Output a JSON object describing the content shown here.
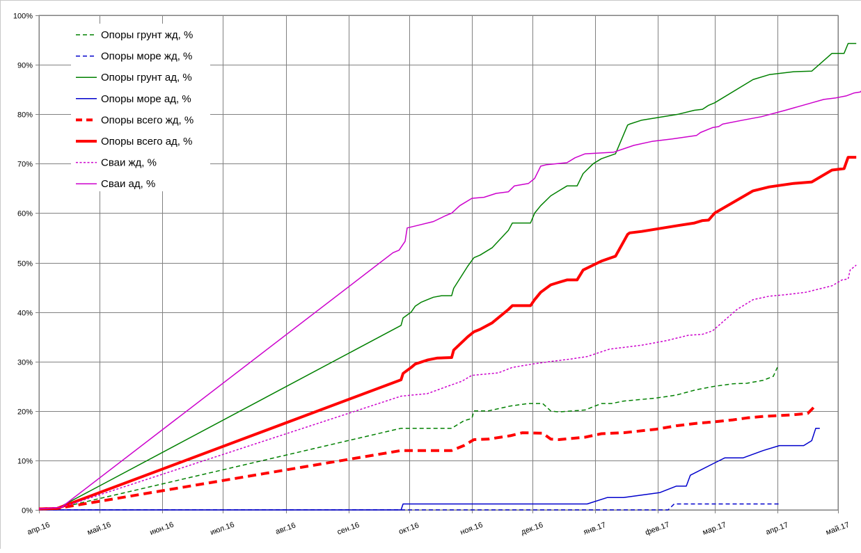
{
  "chart_data": {
    "type": "line",
    "title": "",
    "xlabel": "",
    "ylabel": "",
    "x_range": [
      "2016-04-01",
      "2017-05-01"
    ],
    "ylim": [
      0,
      100
    ],
    "y_ticks": [
      0,
      10,
      20,
      30,
      40,
      50,
      60,
      70,
      80,
      90,
      100
    ],
    "y_tick_labels": [
      "0%",
      "10%",
      "20%",
      "30%",
      "40%",
      "50%",
      "60%",
      "70%",
      "80%",
      "90%",
      "100%"
    ],
    "x_ticks": [
      "2016-04-01",
      "2016-05-01",
      "2016-06-01",
      "2016-07-01",
      "2016-08-01",
      "2016-09-01",
      "2016-10-01",
      "2016-11-01",
      "2016-12-01",
      "2017-01-01",
      "2017-02-01",
      "2017-03-01",
      "2017-04-01",
      "2017-05-01"
    ],
    "x_tick_labels": [
      "апр.16",
      "май.16",
      "июн.16",
      "июл.16",
      "авг.16",
      "сен.16",
      "окт.16",
      "ноя.16",
      "дек.16",
      "янв.17",
      "фев.17",
      "мар.17",
      "апр.17",
      "май.17"
    ],
    "grid": true,
    "legend_position": "top-left",
    "series": [
      {
        "name": "Опоры грунт жд, %",
        "color": "#008000",
        "dash": "dashed",
        "width": "thin",
        "points": [
          [
            "2016-04-01",
            0.2
          ],
          [
            "2016-04-10",
            0.3
          ],
          [
            "2016-09-27",
            16.5
          ],
          [
            "2016-10-22",
            16.5
          ],
          [
            "2016-10-28",
            18
          ],
          [
            "2016-11-01",
            18.5
          ],
          [
            "2016-11-02",
            20
          ],
          [
            "2016-11-09",
            20
          ],
          [
            "2016-11-20",
            21
          ],
          [
            "2016-11-29",
            21.5
          ],
          [
            "2016-12-06",
            21.5
          ],
          [
            "2016-12-10",
            20
          ],
          [
            "2016-12-14",
            19.8
          ],
          [
            "2016-12-27",
            20.2
          ],
          [
            "2017-01-04",
            21.5
          ],
          [
            "2017-01-09",
            21.5
          ],
          [
            "2017-01-15",
            22
          ],
          [
            "2017-01-31",
            22.6
          ],
          [
            "2017-02-10",
            23.2
          ],
          [
            "2017-02-20",
            24.3
          ],
          [
            "2017-03-01",
            25
          ],
          [
            "2017-03-05",
            25.2
          ],
          [
            "2017-03-10",
            25.5
          ],
          [
            "2017-03-17",
            25.6
          ],
          [
            "2017-03-25",
            26.2
          ],
          [
            "2017-03-30",
            27
          ],
          [
            "2017-04-01",
            28.8
          ]
        ]
      },
      {
        "name": "Опоры море жд, %",
        "color": "#0000cc",
        "dash": "dashed",
        "width": "thin",
        "points": [
          [
            "2016-04-01",
            0
          ],
          [
            "2017-02-06",
            0
          ],
          [
            "2017-02-09",
            1.2
          ],
          [
            "2017-04-02",
            1.2
          ]
        ]
      },
      {
        "name": "Опоры грунт ад, %",
        "color": "#008000",
        "dash": "solid",
        "width": "thin",
        "points": [
          [
            "2016-04-01",
            0.2
          ],
          [
            "2016-04-10",
            0.3
          ],
          [
            "2016-09-27",
            37.3
          ],
          [
            "2016-09-28",
            38.8
          ],
          [
            "2016-10-02",
            40
          ],
          [
            "2016-10-04",
            41.2
          ],
          [
            "2016-10-07",
            42
          ],
          [
            "2016-10-10",
            42.5
          ],
          [
            "2016-10-13",
            43
          ],
          [
            "2016-10-17",
            43.3
          ],
          [
            "2016-10-22",
            43.3
          ],
          [
            "2016-10-23",
            44.8
          ],
          [
            "2016-10-30",
            49.3
          ],
          [
            "2016-11-02",
            51
          ],
          [
            "2016-11-05",
            51.5
          ],
          [
            "2016-11-11",
            53
          ],
          [
            "2016-11-19",
            56.5
          ],
          [
            "2016-11-21",
            58
          ],
          [
            "2016-11-30",
            58
          ],
          [
            "2016-12-02",
            60
          ],
          [
            "2016-12-05",
            61.5
          ],
          [
            "2016-12-10",
            63.5
          ],
          [
            "2016-12-14",
            64.5
          ],
          [
            "2016-12-18",
            65.5
          ],
          [
            "2016-12-23",
            65.5
          ],
          [
            "2016-12-26",
            68
          ],
          [
            "2016-12-31",
            70
          ],
          [
            "2017-01-04",
            71
          ],
          [
            "2017-01-11",
            72
          ],
          [
            "2017-01-17",
            77.8
          ],
          [
            "2017-01-18",
            78
          ],
          [
            "2017-01-24",
            78.8
          ],
          [
            "2017-02-11",
            80
          ],
          [
            "2017-02-19",
            80.8
          ],
          [
            "2017-02-23",
            81
          ],
          [
            "2017-02-26",
            81.8
          ],
          [
            "2017-03-01",
            82.3
          ],
          [
            "2017-03-20",
            87
          ],
          [
            "2017-03-28",
            88
          ],
          [
            "2017-04-09",
            88.6
          ],
          [
            "2017-04-18",
            88.7
          ],
          [
            "2017-04-28",
            92.3
          ],
          [
            "2017-05-04",
            92.3
          ],
          [
            "2017-05-06",
            94.3
          ],
          [
            "2017-05-10",
            94.3
          ]
        ]
      },
      {
        "name": "Опоры море ад, %",
        "color": "#0000cc",
        "dash": "solid",
        "width": "thin",
        "points": [
          [
            "2016-04-01",
            0
          ],
          [
            "2016-09-27",
            0
          ],
          [
            "2016-09-28",
            1.2
          ],
          [
            "2016-12-28",
            1.2
          ],
          [
            "2017-01-07",
            2.5
          ],
          [
            "2017-01-15",
            2.5
          ],
          [
            "2017-02-02",
            3.5
          ],
          [
            "2017-02-10",
            4.8
          ],
          [
            "2017-02-15",
            4.8
          ],
          [
            "2017-02-17",
            7
          ],
          [
            "2017-03-01",
            9.5
          ],
          [
            "2017-03-06",
            10.5
          ],
          [
            "2017-03-15",
            10.5
          ],
          [
            "2017-03-25",
            12
          ],
          [
            "2017-04-02",
            13
          ],
          [
            "2017-04-14",
            13
          ],
          [
            "2017-04-18",
            14
          ],
          [
            "2017-04-20",
            16.5
          ],
          [
            "2017-04-22",
            16.5
          ]
        ]
      },
      {
        "name": "Опоры всего жд, %",
        "color": "#ff0000",
        "dash": "dashed",
        "width": "thick",
        "points": [
          [
            "2016-04-01",
            0.2
          ],
          [
            "2016-04-10",
            0.3
          ],
          [
            "2016-09-27",
            12
          ],
          [
            "2016-10-22",
            12
          ],
          [
            "2016-10-28",
            13
          ],
          [
            "2016-11-02",
            14.2
          ],
          [
            "2016-11-09",
            14.3
          ],
          [
            "2016-11-20",
            15
          ],
          [
            "2016-11-26",
            15.6
          ],
          [
            "2016-12-06",
            15.5
          ],
          [
            "2016-12-10",
            14.3
          ],
          [
            "2016-12-14",
            14.2
          ],
          [
            "2016-12-27",
            14.7
          ],
          [
            "2017-01-04",
            15.4
          ],
          [
            "2017-01-15",
            15.6
          ],
          [
            "2017-01-31",
            16.3
          ],
          [
            "2017-02-10",
            17
          ],
          [
            "2017-02-20",
            17.5
          ],
          [
            "2017-03-01",
            17.8
          ],
          [
            "2017-03-10",
            18.2
          ],
          [
            "2017-03-17",
            18.6
          ],
          [
            "2017-03-25",
            18.9
          ],
          [
            "2017-04-08",
            19.2
          ],
          [
            "2017-04-16",
            19.5
          ],
          [
            "2017-04-18",
            20.3
          ],
          [
            "2017-04-20",
            21.2
          ]
        ]
      },
      {
        "name": "Опоры всего ад, %",
        "color": "#ff0000",
        "dash": "solid",
        "width": "thick",
        "points": [
          [
            "2016-04-01",
            0.2
          ],
          [
            "2016-04-10",
            0.3
          ],
          [
            "2016-09-27",
            26.3
          ],
          [
            "2016-09-28",
            27.6
          ],
          [
            "2016-10-02",
            28.8
          ],
          [
            "2016-10-04",
            29.5
          ],
          [
            "2016-10-10",
            30.3
          ],
          [
            "2016-10-15",
            30.7
          ],
          [
            "2016-10-22",
            30.8
          ],
          [
            "2016-10-23",
            32.3
          ],
          [
            "2016-10-30",
            35
          ],
          [
            "2016-11-02",
            36
          ],
          [
            "2016-11-05",
            36.5
          ],
          [
            "2016-11-11",
            37.8
          ],
          [
            "2016-11-19",
            40.5
          ],
          [
            "2016-11-21",
            41.3
          ],
          [
            "2016-11-30",
            41.3
          ],
          [
            "2016-12-02",
            42.5
          ],
          [
            "2016-12-05",
            44
          ],
          [
            "2016-12-10",
            45.5
          ],
          [
            "2016-12-14",
            46
          ],
          [
            "2016-12-18",
            46.5
          ],
          [
            "2016-12-23",
            46.5
          ],
          [
            "2016-12-26",
            48.5
          ],
          [
            "2016-12-31",
            49.5
          ],
          [
            "2017-01-04",
            50.3
          ],
          [
            "2017-01-11",
            51.3
          ],
          [
            "2017-01-17",
            55.7
          ],
          [
            "2017-01-18",
            56
          ],
          [
            "2017-01-24",
            56.3
          ],
          [
            "2017-02-11",
            57.5
          ],
          [
            "2017-02-19",
            58
          ],
          [
            "2017-02-23",
            58.5
          ],
          [
            "2017-02-26",
            58.6
          ],
          [
            "2017-03-01",
            60
          ],
          [
            "2017-03-20",
            64.5
          ],
          [
            "2017-03-28",
            65.3
          ],
          [
            "2017-04-09",
            66
          ],
          [
            "2017-04-18",
            66.3
          ],
          [
            "2017-04-28",
            68.7
          ],
          [
            "2017-05-04",
            69
          ],
          [
            "2017-05-06",
            71.3
          ],
          [
            "2017-05-10",
            71.3
          ]
        ]
      },
      {
        "name": "Сваи жд, %",
        "color": "#cc00cc",
        "dash": "dotted",
        "width": "thin",
        "points": [
          [
            "2016-04-01",
            0.2
          ],
          [
            "2016-04-12",
            0.5
          ],
          [
            "2016-09-27",
            23
          ],
          [
            "2016-10-10",
            23.5
          ],
          [
            "2016-10-20",
            25
          ],
          [
            "2016-10-27",
            26
          ],
          [
            "2016-11-01",
            27.2
          ],
          [
            "2016-11-14",
            27.7
          ],
          [
            "2016-11-21",
            28.8
          ],
          [
            "2016-12-01",
            29.5
          ],
          [
            "2016-12-10",
            30
          ],
          [
            "2016-12-20",
            30.5
          ],
          [
            "2016-12-28",
            31
          ],
          [
            "2017-01-08",
            32.5
          ],
          [
            "2017-01-18",
            33
          ],
          [
            "2017-01-24",
            33.3
          ],
          [
            "2017-02-05",
            34.2
          ],
          [
            "2017-02-16",
            35.3
          ],
          [
            "2017-02-23",
            35.5
          ],
          [
            "2017-02-28",
            36.2
          ],
          [
            "2017-03-05",
            38
          ],
          [
            "2017-03-12",
            40.5
          ],
          [
            "2017-03-20",
            42.5
          ],
          [
            "2017-03-28",
            43.2
          ],
          [
            "2017-04-05",
            43.5
          ],
          [
            "2017-04-15",
            44
          ],
          [
            "2017-04-28",
            45.3
          ],
          [
            "2017-05-03",
            46.5
          ],
          [
            "2017-05-06",
            46.7
          ],
          [
            "2017-05-07",
            48.5
          ],
          [
            "2017-05-10",
            49.5
          ]
        ]
      },
      {
        "name": "Сваи ад, %",
        "color": "#cc00cc",
        "dash": "solid",
        "width": "thin",
        "points": [
          [
            "2016-04-01",
            0.2
          ],
          [
            "2016-04-12",
            0.5
          ],
          [
            "2016-09-23",
            52
          ],
          [
            "2016-09-26",
            52.5
          ],
          [
            "2016-09-29",
            54.3
          ],
          [
            "2016-09-30",
            57
          ],
          [
            "2016-10-05",
            57.5
          ],
          [
            "2016-10-13",
            58.3
          ],
          [
            "2016-10-19",
            59.5
          ],
          [
            "2016-10-22",
            60
          ],
          [
            "2016-10-26",
            61.5
          ],
          [
            "2016-11-01",
            63
          ],
          [
            "2016-11-07",
            63.2
          ],
          [
            "2016-11-13",
            64
          ],
          [
            "2016-11-19",
            64.3
          ],
          [
            "2016-11-22",
            65.5
          ],
          [
            "2016-11-29",
            66
          ],
          [
            "2016-12-02",
            67
          ],
          [
            "2016-12-05",
            69.5
          ],
          [
            "2016-12-08",
            69.8
          ],
          [
            "2016-12-18",
            70.2
          ],
          [
            "2016-12-22",
            71.2
          ],
          [
            "2016-12-27",
            72
          ],
          [
            "2017-01-10",
            72.3
          ],
          [
            "2017-01-20",
            73.7
          ],
          [
            "2017-01-29",
            74.5
          ],
          [
            "2017-02-08",
            75
          ],
          [
            "2017-02-20",
            75.7
          ],
          [
            "2017-02-22",
            76.3
          ],
          [
            "2017-02-28",
            77.3
          ],
          [
            "2017-03-03",
            77.5
          ],
          [
            "2017-03-05",
            78
          ],
          [
            "2017-03-15",
            78.8
          ],
          [
            "2017-03-24",
            79.5
          ],
          [
            "2017-04-05",
            80.8
          ],
          [
            "2017-04-18",
            82.3
          ],
          [
            "2017-04-24",
            83
          ],
          [
            "2017-04-30",
            83.3
          ],
          [
            "2017-05-05",
            83.7
          ],
          [
            "2017-05-09",
            84.3
          ],
          [
            "2017-05-12",
            84.5
          ],
          [
            "2017-05-14",
            85.3
          ],
          [
            "2017-05-16",
            85.5
          ]
        ]
      }
    ]
  }
}
